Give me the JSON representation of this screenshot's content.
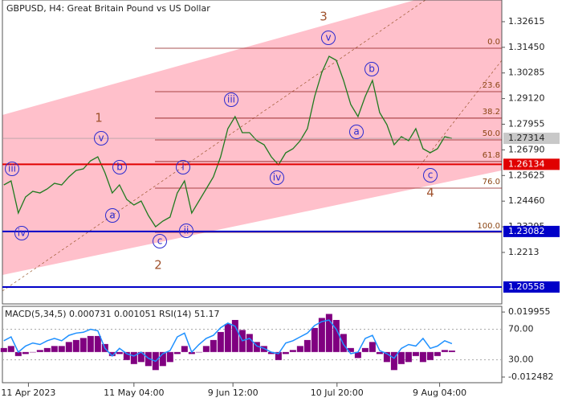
{
  "chart_data": [
    {
      "type": "line",
      "title": "GBPUSD, H4:  Great Britain Pound vs US Dollar",
      "color": "#1f7a1f",
      "values": [
        1.25197,
        1.2538,
        1.23918,
        1.24649,
        1.24905,
        1.24832,
        1.25015,
        1.2527,
        1.25197,
        1.25563,
        1.25855,
        1.25928,
        1.26294,
        1.26476,
        1.25745,
        1.24832,
        1.25197,
        1.2454,
        1.24284,
        1.24467,
        1.23809,
        1.23297,
        1.23553,
        1.23736,
        1.24832,
        1.2538,
        1.23918,
        1.24467,
        1.25015,
        1.25563,
        1.26476,
        1.27755,
        1.28303,
        1.27572,
        1.27572,
        1.27207,
        1.27024,
        1.26476,
        1.26111,
        1.26659,
        1.26842,
        1.27207,
        1.27755,
        1.29217,
        1.30313,
        1.31044,
        1.30861,
        1.29948,
        1.28851,
        1.28303,
        1.29217,
        1.29948,
        1.28486,
        1.27938,
        1.27024,
        1.2739,
        1.27207,
        1.27755,
        1.26842,
        1.26659,
        1.26842,
        1.2739,
        1.27314
      ],
      "xlim": [
        -0.2,
        68.9
      ],
      "xticks": [
        {
          "value": 3.4,
          "label": "11 Apr 2023"
        },
        {
          "value": 18,
          "label": "11 May 04:00"
        },
        {
          "value": 31.7,
          "label": "9 Jun 12:00"
        },
        {
          "value": 46.1,
          "label": "10 Jul 20:00"
        },
        {
          "value": 60.3,
          "label": "9 Aug 04:00"
        }
      ],
      "ylim": [
        1.1979,
        1.336
      ],
      "yticks": [
        1.32615,
        {
          "value": 1.3145,
          "label": "1.31450"
        },
        1.30285,
        {
          "value": 1.2912,
          "label": "1.29120"
        },
        1.27955,
        {
          "value": 1.2679,
          "label": "1.26790"
        },
        1.25625,
        {
          "value": 1.2446,
          "label": "1.24460"
        },
        1.23295,
        1.2213
      ],
      "levels": [
        {
          "value": 1.26134,
          "color": "#e00000"
        },
        {
          "value": 1.23082,
          "color": "#0000c8"
        },
        {
          "value": 1.20558,
          "color": "#0000c8"
        }
      ],
      "current_price": 1.27314,
      "fib_levels": [
        {
          "ratio": "0.0",
          "price": 1.31409
        },
        {
          "ratio": "23.6",
          "price": 1.29436
        },
        {
          "ratio": "38.2",
          "price": 1.28231
        },
        {
          "ratio": "50.0",
          "price": 1.27244
        },
        {
          "ratio": "61.8",
          "price": 1.26258
        },
        {
          "ratio": "76.0",
          "price": 1.25052
        },
        {
          "ratio": "100.0",
          "price": 1.23042
        }
      ],
      "wave_labels": [
        "iii",
        "iv",
        "v",
        "b",
        "a",
        "c",
        "i",
        "ii",
        "iii",
        "iv",
        "v",
        "a",
        "b",
        "c"
      ],
      "degree_labels": [
        "1",
        "2",
        "3",
        "4"
      ]
    },
    {
      "type": "macd",
      "title": "MACD(5,34,5) 0.000731 0.001051 RSI(14) 51.17",
      "series": [
        {
          "color": "#800080",
          "values": [
            0.002,
            0.003,
            -0.002,
            -0.001,
            0,
            0.001,
            0.002,
            0.003,
            0.003,
            0.005,
            0.006,
            0.007,
            0.008,
            0.008,
            0.004,
            -0.002,
            -0.001,
            -0.004,
            -0.006,
            -0.005,
            -0.007,
            -0.009,
            -0.007,
            -0.005,
            -0.001,
            0.003,
            -0.001,
            0,
            0.003,
            0.006,
            0.01,
            0.014,
            0.016,
            0.011,
            0.009,
            0.005,
            0.003,
            -0.001,
            -0.004,
            -0.001,
            0.001,
            0.003,
            0.006,
            0.012,
            0.017,
            0.019,
            0.016,
            0.009,
            0.002,
            -0.003,
            0.002,
            0.005,
            -0.001,
            -0.005,
            -0.009,
            -0.006,
            -0.005,
            -0.002,
            -0.005,
            -0.004,
            -0.002,
            0.001,
            0.000731
          ]
        },
        {
          "color": "#1e90ff",
          "axis": "y2",
          "values": [
            55,
            60,
            40,
            48,
            52,
            50,
            55,
            58,
            55,
            62,
            65,
            66,
            70,
            68,
            45,
            35,
            45,
            38,
            35,
            40,
            32,
            28,
            38,
            42,
            60,
            65,
            40,
            50,
            58,
            62,
            72,
            78,
            74,
            55,
            58,
            48,
            45,
            40,
            38,
            52,
            55,
            60,
            65,
            75,
            80,
            82,
            70,
            50,
            38,
            40,
            58,
            62,
            42,
            38,
            32,
            45,
            50,
            48,
            58,
            45,
            48,
            55,
            51.17
          ]
        }
      ],
      "ylim": [
        -0.0153,
        0.0228
      ],
      "yticks": [
        0.019955,
        -0.012482
      ],
      "y2lim": [
        0,
        100
      ],
      "y2ticks": [
        {
          "value": 70,
          "label": "70.00"
        },
        {
          "value": 30,
          "label": "30.00"
        }
      ]
    }
  ]
}
